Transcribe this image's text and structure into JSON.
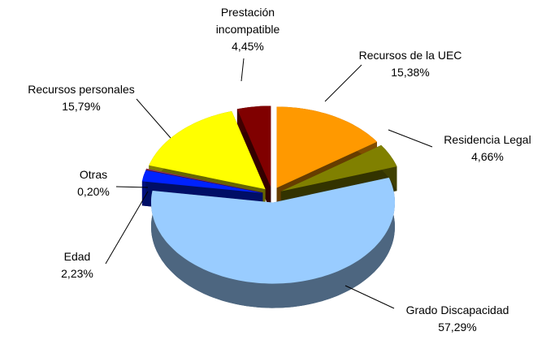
{
  "chart_data": {
    "type": "pie",
    "categories": [
      "Prestación incompatible",
      "Recursos de la UEC",
      "Residencia Legal",
      "Grado Discapacidad",
      "Edad",
      "Otras",
      "Recursos personales"
    ],
    "values": [
      4.45,
      15.38,
      4.66,
      57.29,
      2.23,
      0.2,
      15.79
    ],
    "value_labels": [
      "4,45%",
      "15,38%",
      "4,66%",
      "57,29%",
      "2,23%",
      "0,20%",
      "15,79%"
    ],
    "colors": [
      "#800000",
      "#ff9900",
      "#808000",
      "#99ccff",
      "#0022ff",
      "#993366",
      "#ffff00"
    ]
  }
}
